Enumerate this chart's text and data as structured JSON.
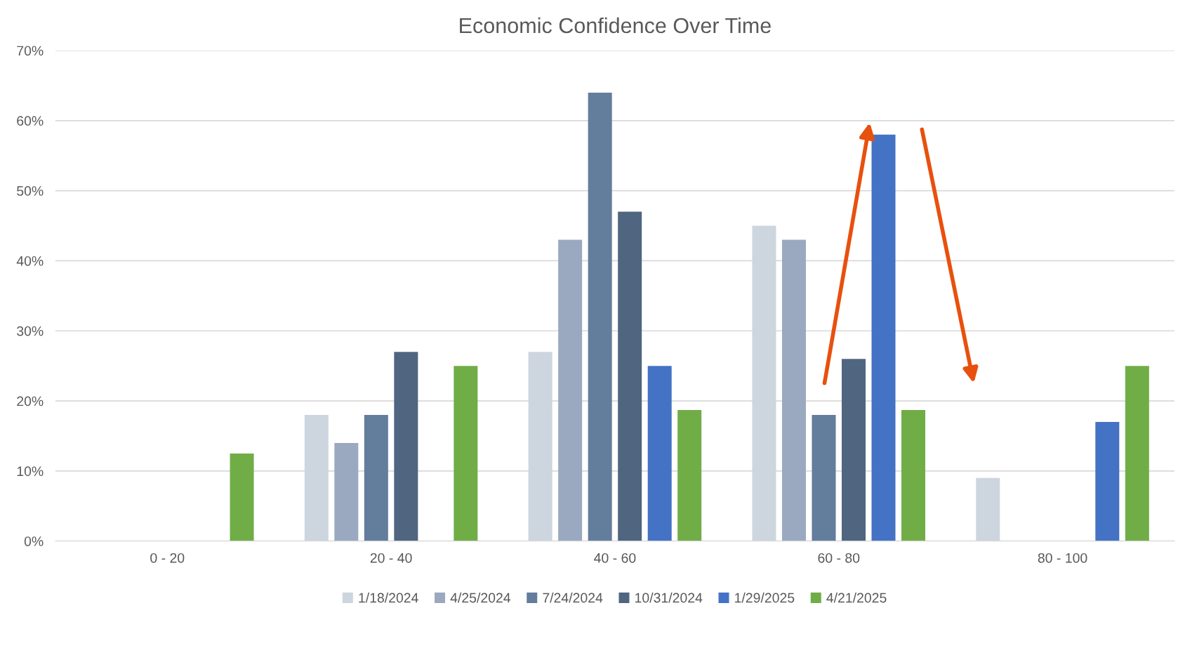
{
  "chart_data": {
    "type": "bar",
    "title": "Economic Confidence Over Time",
    "categories": [
      "0 - 20",
      "20 - 40",
      "40 - 60",
      "60 - 80",
      "80 - 100"
    ],
    "series": [
      {
        "name": "1/18/2024",
        "color": "#cdd5df",
        "values": [
          0,
          18,
          27,
          45,
          9
        ]
      },
      {
        "name": "4/25/2024",
        "color": "#9aa9c0",
        "values": [
          0,
          14,
          43,
          43,
          0
        ]
      },
      {
        "name": "7/24/2024",
        "color": "#637d9c",
        "values": [
          0,
          18,
          64,
          18,
          0
        ]
      },
      {
        "name": "10/31/2024",
        "color": "#4f6580",
        "values": [
          0,
          27,
          47,
          26,
          0
        ]
      },
      {
        "name": "1/29/2025",
        "color": "#4472c4",
        "values": [
          0,
          0,
          25,
          58,
          17
        ]
      },
      {
        "name": "4/21/2025",
        "color": "#70ad47",
        "values": [
          12.5,
          25,
          18.7,
          18.7,
          25
        ]
      }
    ],
    "ylim": [
      0,
      70
    ],
    "yticks": [
      {
        "value": 0,
        "label": "0%"
      },
      {
        "value": 10,
        "label": "10%"
      },
      {
        "value": 20,
        "label": "20%"
      },
      {
        "value": 30,
        "label": "30%"
      },
      {
        "value": 40,
        "label": "40%"
      },
      {
        "value": 50,
        "label": "50%"
      },
      {
        "value": 60,
        "label": "60%"
      },
      {
        "value": 70,
        "label": "70%"
      }
    ],
    "grid": "y",
    "legend": "bottom"
  }
}
